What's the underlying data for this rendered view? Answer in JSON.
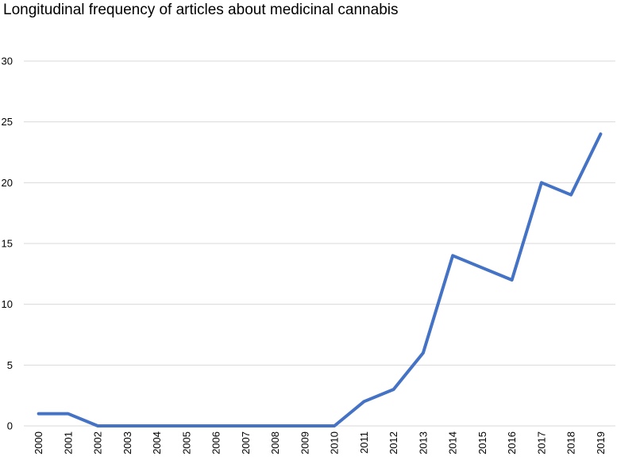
{
  "chart_data": {
    "type": "line",
    "title": "Longitudinal frequency of articles about medicinal cannabis",
    "xlabel": "",
    "ylabel": "",
    "categories": [
      "2000",
      "2001",
      "2002",
      "2003",
      "2004",
      "2005",
      "2006",
      "2007",
      "2008",
      "2009",
      "2010",
      "2011",
      "2012",
      "2013",
      "2014",
      "2015",
      "2016",
      "2017",
      "2018",
      "2019"
    ],
    "series": [
      {
        "name": "Articles",
        "values": [
          1,
          1,
          0,
          0,
          0,
          0,
          0,
          0,
          0,
          0,
          0,
          2,
          3,
          6,
          14,
          13,
          12,
          20,
          19,
          24
        ]
      }
    ],
    "ylim": [
      0,
      30
    ],
    "yticks": [
      0,
      5,
      10,
      15,
      20,
      25,
      30
    ],
    "grid": true,
    "legend": "none",
    "line_color": "#4472c4"
  }
}
